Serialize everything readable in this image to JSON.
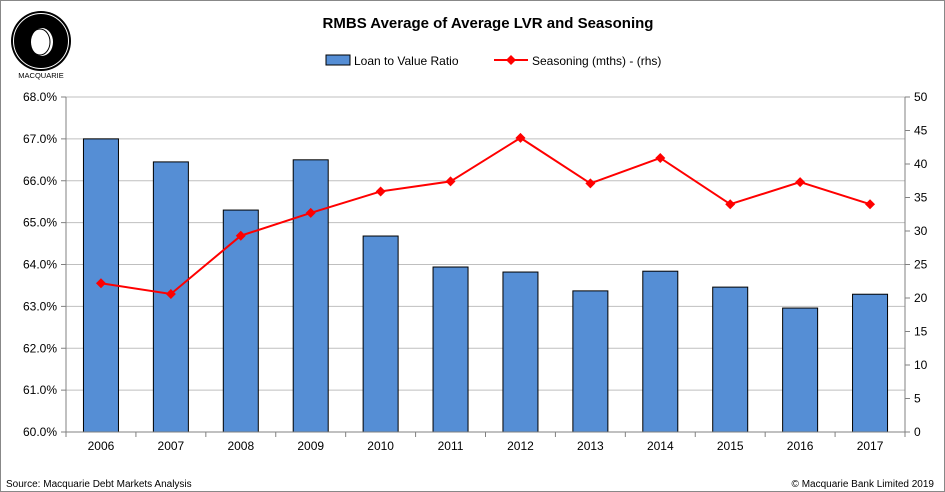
{
  "logo": {
    "text": "MACQUARIE"
  },
  "footer": {
    "source": "Source: Macquarie Debt Markets Analysis",
    "copyright": "© Macquarie Bank Limited 2019"
  },
  "chart_data": {
    "type": "bar+line",
    "title": "RMBS Average of Average LVR and Seasoning",
    "categories": [
      "2006",
      "2007",
      "2008",
      "2009",
      "2010",
      "2011",
      "2012",
      "2013",
      "2014",
      "2015",
      "2016",
      "2017"
    ],
    "series": [
      {
        "name": "Loan to Value Ratio",
        "type": "bar",
        "axis": "left",
        "color": "#558ED5",
        "values": [
          67.0,
          66.45,
          65.3,
          66.5,
          64.68,
          63.94,
          63.82,
          63.37,
          63.84,
          63.46,
          62.96,
          63.29
        ]
      },
      {
        "name": "Seasoning (mths) - (rhs)",
        "type": "line",
        "axis": "right",
        "color": "#FF0000",
        "values": [
          22.2,
          20.6,
          29.3,
          32.7,
          35.9,
          37.4,
          43.9,
          37.1,
          40.9,
          34.0,
          37.3,
          34.0
        ]
      }
    ],
    "y_left": {
      "min": 60,
      "max": 68,
      "step": 1,
      "tick_labels": [
        "60.0%",
        "61.0%",
        "62.0%",
        "63.0%",
        "64.0%",
        "65.0%",
        "66.0%",
        "67.0%",
        "68.0%"
      ]
    },
    "y_right": {
      "min": 0,
      "max": 50,
      "step": 5,
      "tick_labels": [
        "0",
        "5",
        "10",
        "15",
        "20",
        "25",
        "30",
        "35",
        "40",
        "45",
        "50"
      ]
    },
    "grid": true,
    "legend": "top"
  }
}
